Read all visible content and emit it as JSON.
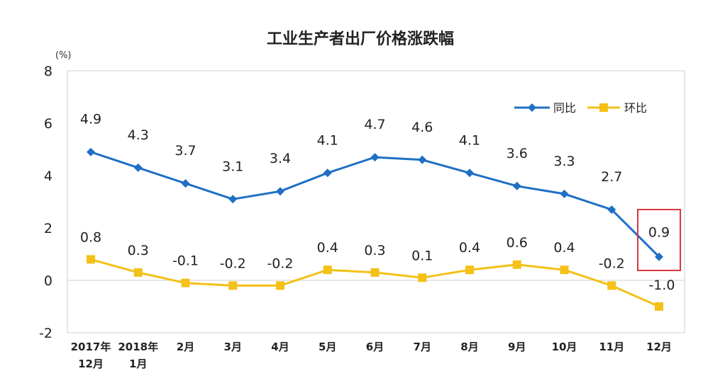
{
  "chart_data": {
    "type": "line",
    "title": "工业生产者出厂价格涨跌幅",
    "unit": "(%)",
    "categories": [
      [
        "2017年",
        "12月"
      ],
      [
        "2018年",
        "1月"
      ],
      [
        "2月"
      ],
      [
        "3月"
      ],
      [
        "4月"
      ],
      [
        "5月"
      ],
      [
        "6月"
      ],
      [
        "7月"
      ],
      [
        "8月"
      ],
      [
        "9月"
      ],
      [
        "10月"
      ],
      [
        "11月"
      ],
      [
        "12月"
      ]
    ],
    "yticks": [
      "8",
      "6",
      "4",
      "2",
      "0",
      "-2"
    ],
    "ylim": [
      -2,
      8
    ],
    "legend_position": "top-right",
    "highlight_index": 12,
    "series": [
      {
        "name": "同比",
        "color": "#1f6fc5",
        "marker": "diamond",
        "values": [
          4.9,
          4.3,
          3.7,
          3.1,
          3.4,
          4.1,
          4.7,
          4.6,
          4.1,
          3.6,
          3.3,
          2.7,
          0.9
        ],
        "labels": [
          "4.9",
          "4.3",
          "3.7",
          "3.1",
          "3.4",
          "4.1",
          "4.7",
          "4.6",
          "4.1",
          "3.6",
          "3.3",
          "2.7",
          "0.9"
        ]
      },
      {
        "name": "环比",
        "color": "#f3c117",
        "marker": "square",
        "values": [
          0.8,
          0.3,
          -0.1,
          -0.2,
          -0.2,
          0.4,
          0.3,
          0.1,
          0.4,
          0.6,
          0.4,
          -0.2,
          -1.0
        ],
        "labels": [
          "0.8",
          "0.3",
          "-0.1",
          "-0.2",
          "-0.2",
          "0.4",
          "0.3",
          "0.1",
          "0.4",
          "0.6",
          "0.4",
          "-0.2",
          "-1.0"
        ]
      }
    ],
    "highlight_color": "#d9363e"
  }
}
